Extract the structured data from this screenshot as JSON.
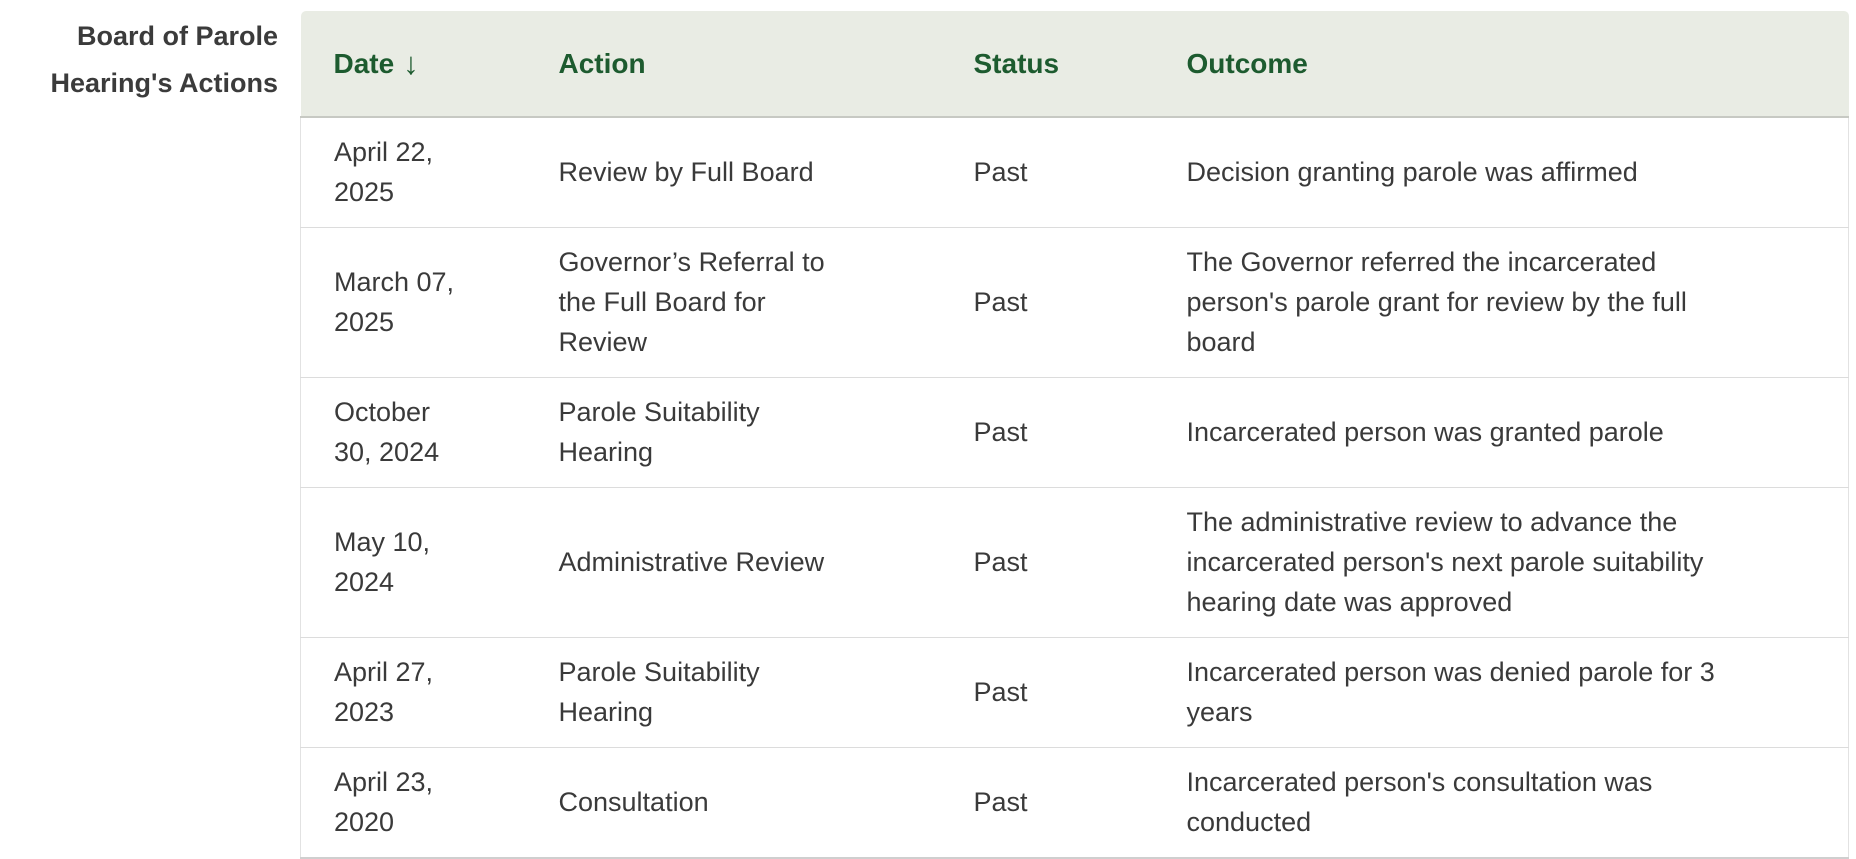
{
  "page": {
    "section_title": "Board of Parole Hearing's Actions"
  },
  "table": {
    "columns": [
      {
        "label": "Date",
        "sort_icon": "↓",
        "sorted": "descending"
      },
      {
        "label": "Action"
      },
      {
        "label": "Status"
      },
      {
        "label": "Outcome"
      }
    ],
    "rows": [
      {
        "date": "April 22, 2025",
        "action": "Review by Full Board",
        "status": "Past",
        "outcome": "Decision granting parole was affirmed"
      },
      {
        "date": "March 07, 2025",
        "action": "Governor’s Referral to the Full Board for Review",
        "status": "Past",
        "outcome": "The Governor referred the incarcerated person's parole grant for review by the full board"
      },
      {
        "date": "October 30, 2024",
        "action": "Parole Suitability Hearing",
        "status": "Past",
        "outcome": "Incarcerated person was granted parole"
      },
      {
        "date": "May 10, 2024",
        "action": "Administrative Review",
        "status": "Past",
        "outcome": "The administrative review to advance the incarcerated person's next parole suitability hearing date was approved"
      },
      {
        "date": "April 27, 2023",
        "action": "Parole Suitability Hearing",
        "status": "Past",
        "outcome": "Incarcerated person was denied parole for 3 years"
      },
      {
        "date": "April 23, 2020",
        "action": "Consultation",
        "status": "Past",
        "outcome": "Incarcerated person's consultation was conducted"
      }
    ]
  },
  "colors": {
    "header_bg": "#e9ece4",
    "header_text": "#1d5b2f",
    "body_text": "#3a3a3a",
    "divider": "#dcdcdc"
  }
}
